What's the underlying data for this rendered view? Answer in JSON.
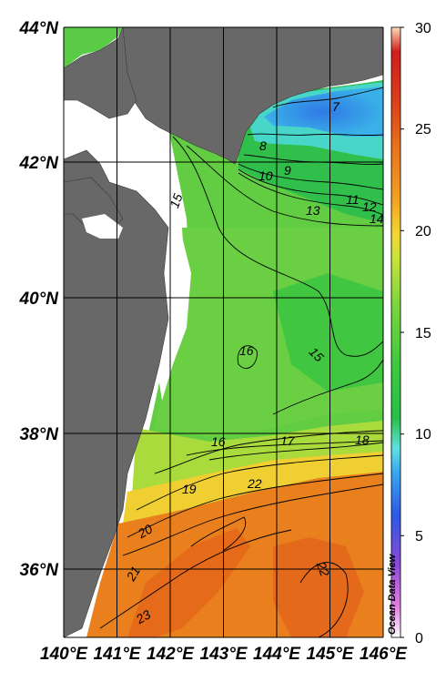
{
  "map": {
    "lat_labels": [
      "44°N",
      "42°N",
      "40°N",
      "38°N",
      "36°N"
    ],
    "lon_labels": [
      "140°E",
      "141°E",
      "142°E",
      "143°E",
      "144°E",
      "145°E",
      "146°E"
    ],
    "lat_range": [
      35,
      44
    ],
    "lon_range": [
      140,
      146
    ],
    "land_color": "#686868",
    "grid_color": "#000000"
  },
  "colorbar": {
    "ticks": [
      "0",
      "5",
      "10",
      "15",
      "20",
      "25",
      "30"
    ],
    "range": [
      0,
      30
    ],
    "credit": "Ocean Data View",
    "stops": [
      "#ffffff",
      "#e27fe0",
      "#8a4ad6",
      "#2e58e6",
      "#37a7ef",
      "#5fe1e1",
      "#26c046",
      "#3fc93e",
      "#7fd63d",
      "#c8e33a",
      "#f5d733",
      "#f2a022",
      "#e9741b",
      "#db3e1a",
      "#cd1f1c",
      "#ffd9b5"
    ]
  },
  "contours": [
    "7",
    "8",
    "9",
    "10",
    "11",
    "12",
    "14",
    "13",
    "15",
    "15",
    "16",
    "15",
    "16",
    "17",
    "18",
    "19",
    "22",
    "20",
    "21",
    "22",
    "23"
  ]
}
